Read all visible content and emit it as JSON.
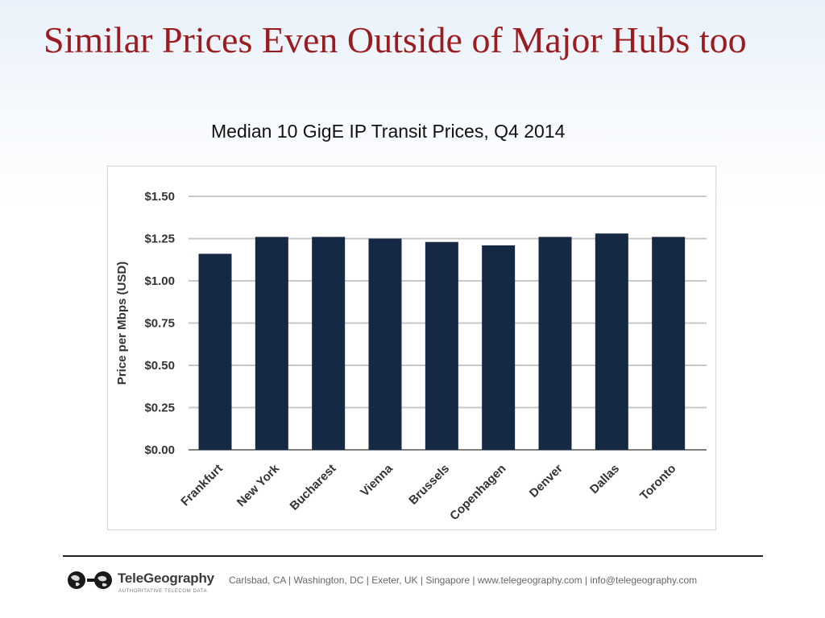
{
  "slide": {
    "title": "Similar Prices Even Outside of Major Hubs too",
    "subtitle": "Median 10 GigE IP Transit Prices, Q4 2014"
  },
  "chart_data": {
    "type": "bar",
    "title": "Median 10 GigE IP Transit Prices, Q4 2014",
    "xlabel": "",
    "ylabel": "Price per Mbps (USD)",
    "categories": [
      "Frankfurt",
      "New York",
      "Bucharest",
      "Vienna",
      "Brussels",
      "Copenhagen",
      "Denver",
      "Dallas",
      "Toronto"
    ],
    "values": [
      1.16,
      1.26,
      1.26,
      1.25,
      1.23,
      1.21,
      1.26,
      1.28,
      1.26
    ],
    "ylim": [
      0,
      1.5
    ],
    "y_ticks": [
      0,
      0.25,
      0.5,
      0.75,
      1.0,
      1.25,
      1.5
    ],
    "y_tick_labels": [
      "$0.00",
      "$0.25",
      "$0.50",
      "$0.75",
      "$1.00",
      "$1.25",
      "$1.50"
    ],
    "grid": true,
    "bar_color": "#152844",
    "grid_color": "#c8c8c8"
  },
  "footer": {
    "brand": "TeleGeography",
    "tagline": "AUTHORITATIVE TELECOM DATA",
    "contact": "Carlsbad, CA | Washington, DC | Exeter, UK | Singapore | www.telegeography.com | info@telegeography.com"
  },
  "colors": {
    "title": "#9b1c1f",
    "bar": "#152844"
  }
}
